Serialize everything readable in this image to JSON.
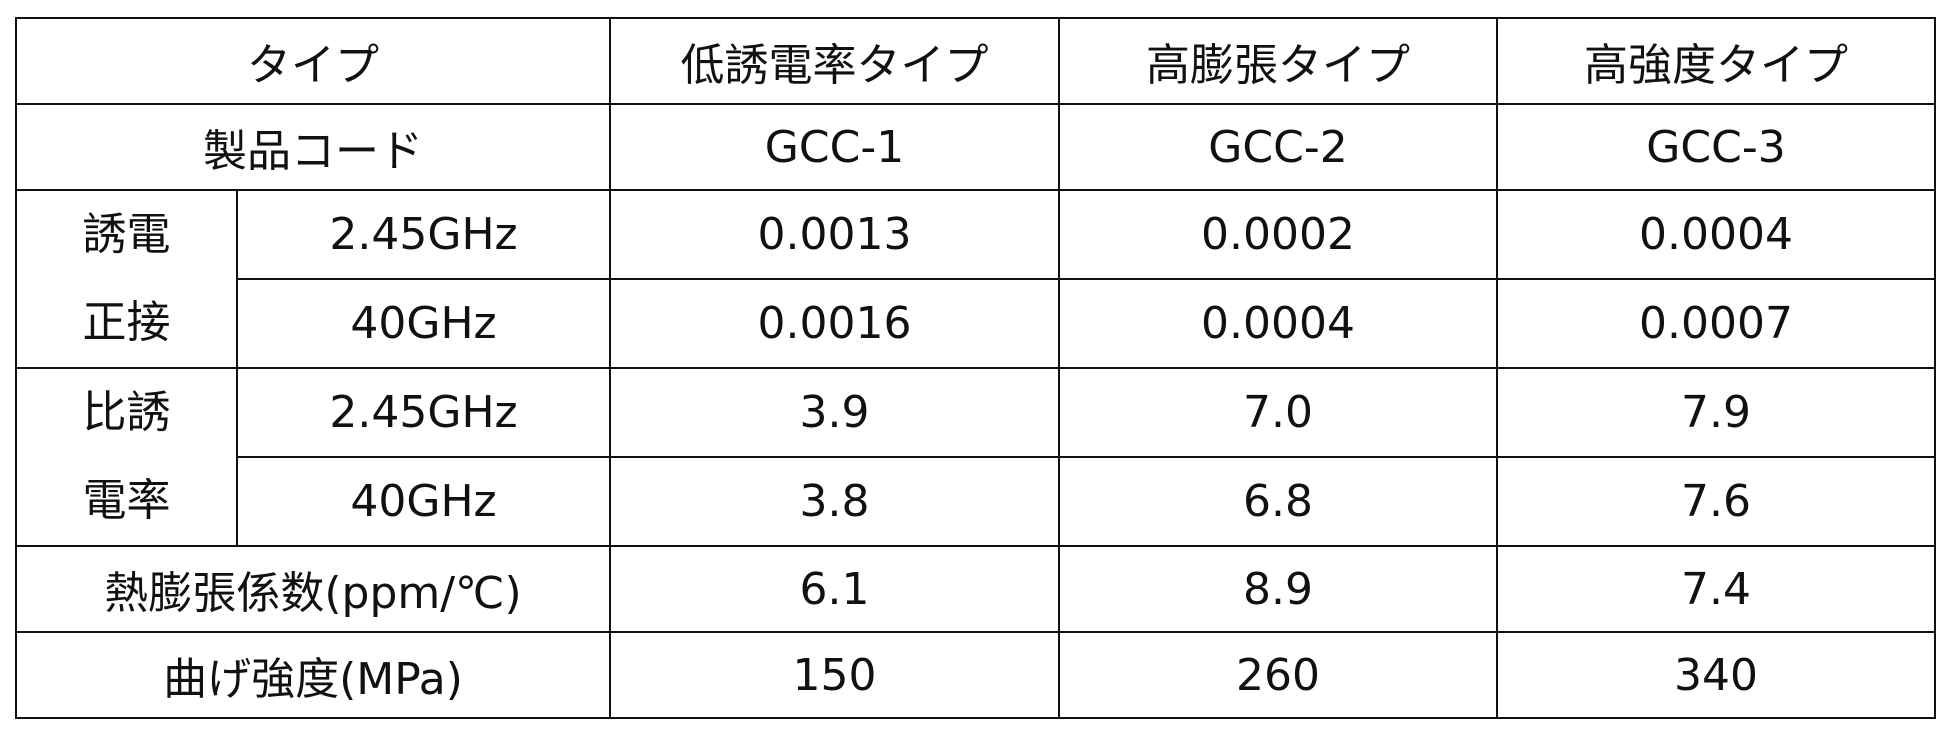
{
  "table": {
    "header": [
      "タイプ",
      "低誘電率タイプ",
      "高膨張タイプ",
      "高強度タイプ"
    ],
    "product_code": {
      "label": "製品コード",
      "values": [
        "GCC-1",
        "GCC-2",
        "GCC-3"
      ]
    },
    "groups": [
      {
        "label": "誘電正接",
        "rows": [
          {
            "label": "2.45GHz",
            "values": [
              "0.0013",
              "0.0002",
              "0.0004"
            ]
          },
          {
            "label": "40GHz",
            "values": [
              "0.0016",
              "0.0004",
              "0.0007"
            ]
          }
        ]
      },
      {
        "label": "比誘電率",
        "rows": [
          {
            "label": "2.45GHz",
            "values": [
              "3.9",
              "7.0",
              "7.9"
            ]
          },
          {
            "label": "40GHz",
            "values": [
              "3.8",
              "6.8",
              "7.6"
            ]
          }
        ]
      }
    ],
    "rows": [
      {
        "label": "熱膨張係数(ppm/℃)",
        "values": [
          "6.1",
          "8.9",
          "7.4"
        ]
      },
      {
        "label": "曲げ強度(MPa)",
        "values": [
          "150",
          "260",
          "340"
        ]
      }
    ]
  }
}
